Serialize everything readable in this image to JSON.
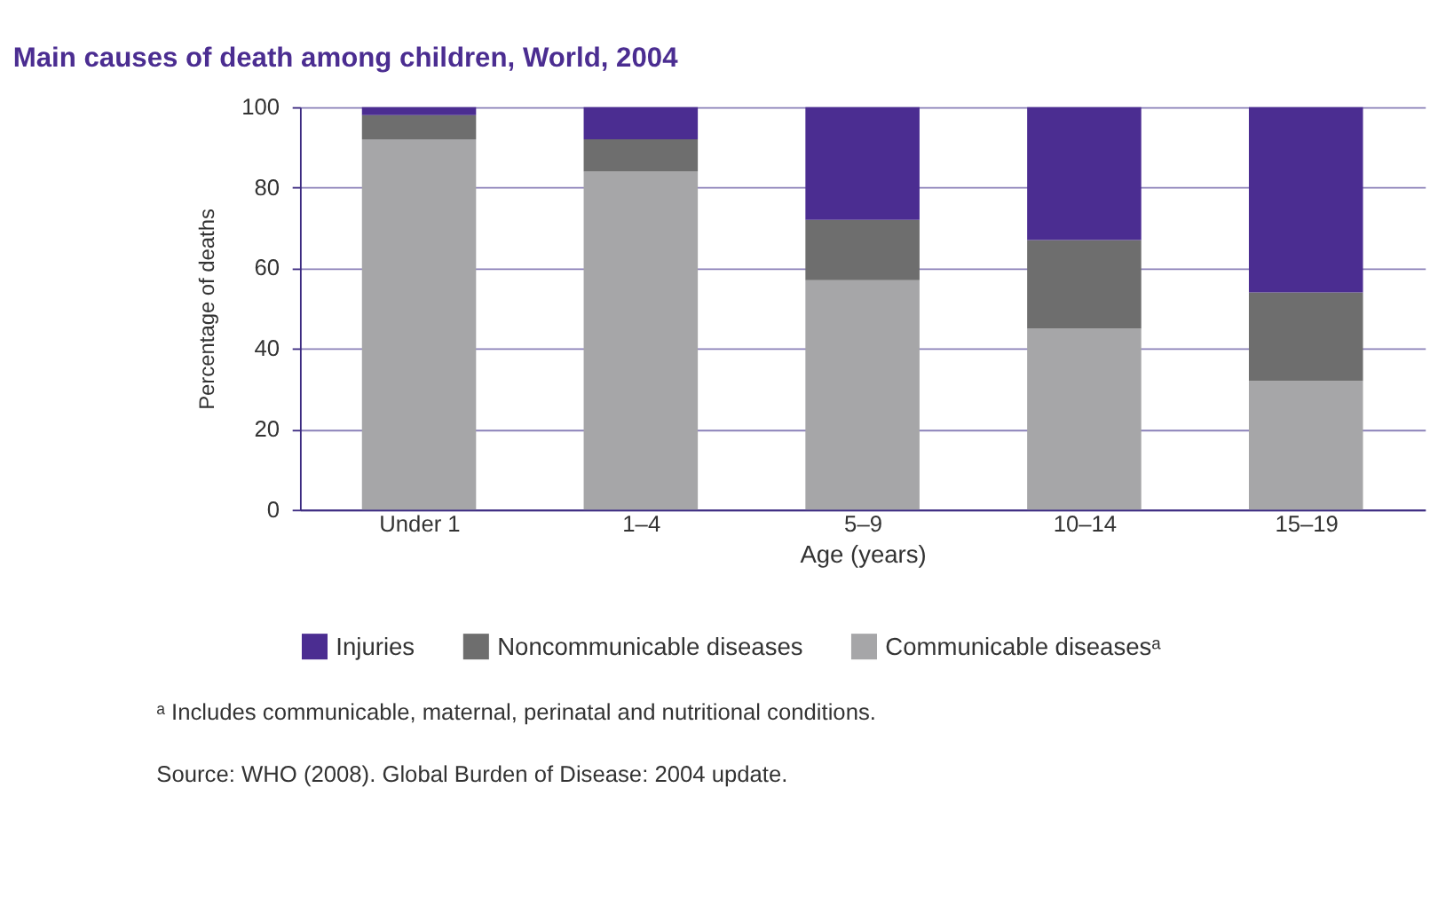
{
  "chart_data": {
    "type": "bar",
    "title": "Main causes of death among children, World, 2004",
    "xlabel": "Age (years)",
    "ylabel": "Percentage of deaths",
    "categories": [
      "Under 1",
      "1–4",
      "5–9",
      "10–14",
      "15–19"
    ],
    "stacked": true,
    "series": [
      {
        "name": "Communicable diseasesᵃ",
        "color": "#a6a6a8",
        "values": [
          92,
          84,
          57,
          45,
          32
        ]
      },
      {
        "name": "Noncommunicable diseases",
        "color": "#6e6e6e",
        "values": [
          6,
          8,
          15,
          22,
          22
        ]
      },
      {
        "name": "Injuries",
        "color": "#4b2d91",
        "values": [
          2,
          8,
          28,
          33,
          46
        ]
      }
    ],
    "ylim": [
      0,
      100
    ],
    "yticks": [
      0,
      20,
      40,
      60,
      80,
      100
    ],
    "grid": "y",
    "legend": "bottom",
    "annotations": [
      "ᵃ  Includes communicable, maternal, perinatal and nutritional conditions.",
      "Source: WHO (2008). Global Burden of Disease: 2004 update."
    ]
  }
}
